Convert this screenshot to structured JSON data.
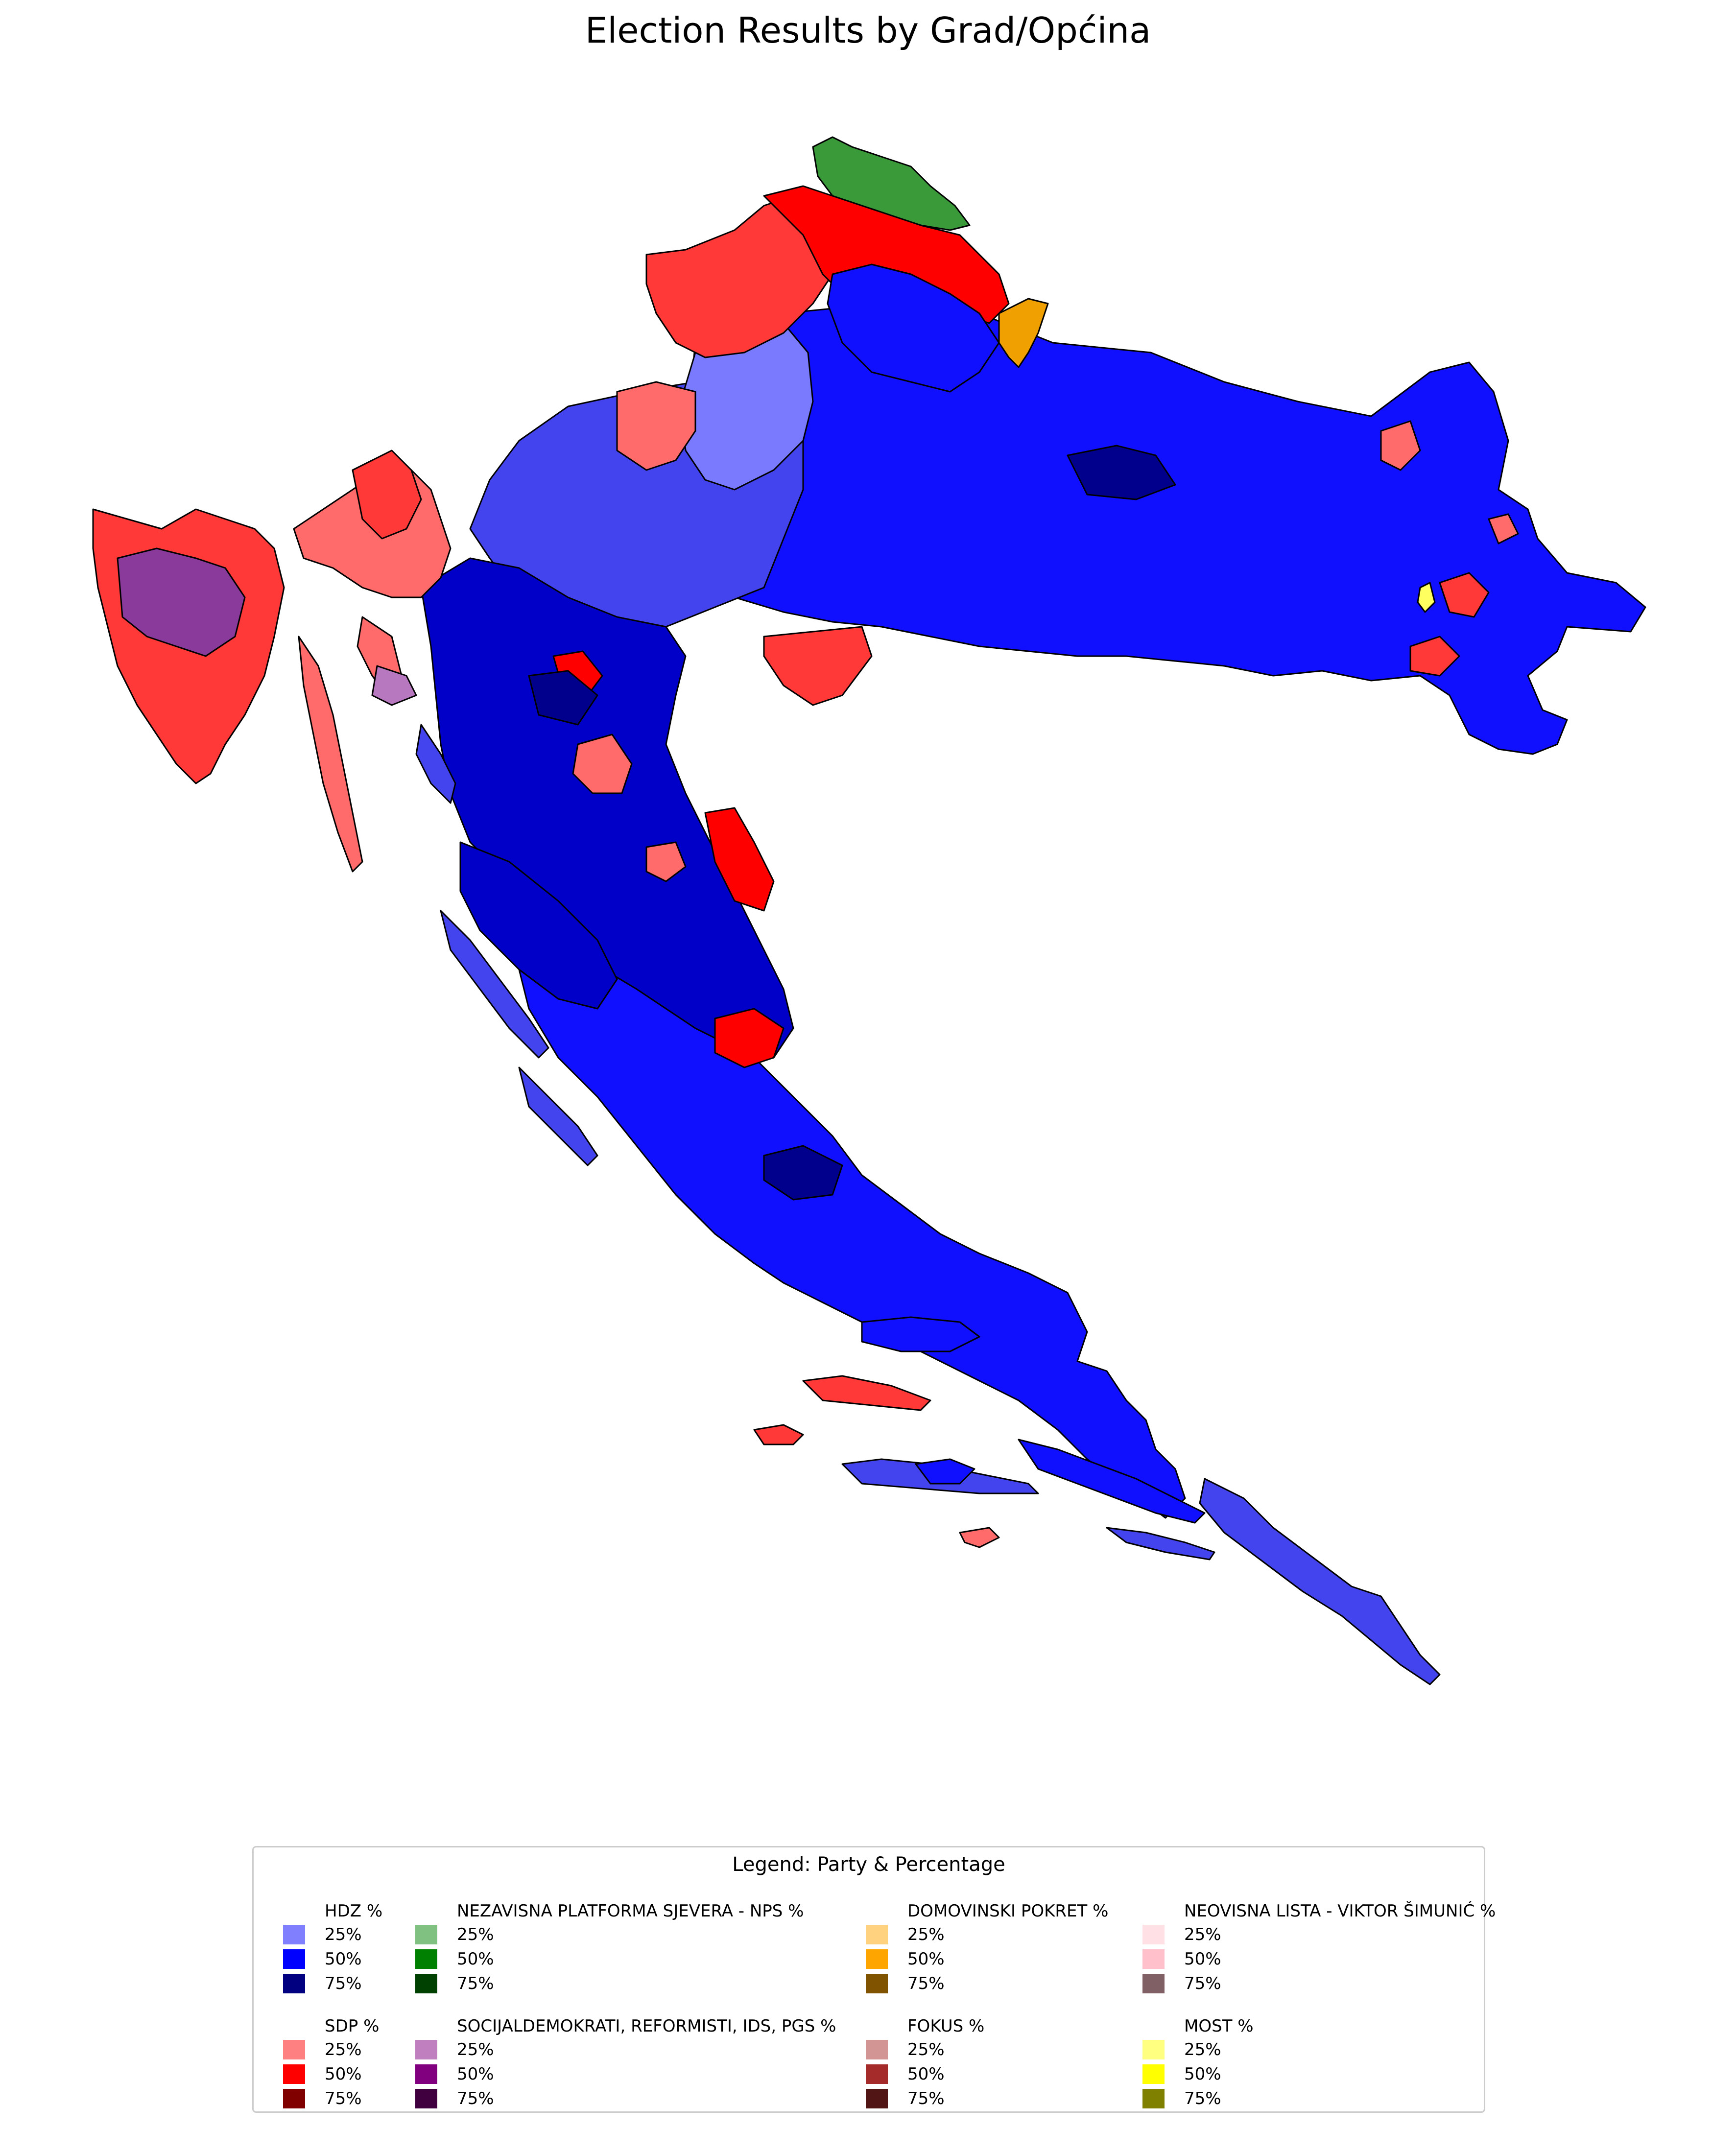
{
  "title": "Election Results by Grad/Općina",
  "legend": {
    "title": "Legend: Party & Percentage",
    "groups": [
      {
        "name": "HDZ %",
        "colors": [
          "#8080ff",
          "#0000ff",
          "#000080"
        ],
        "labels": [
          "25%",
          "50%",
          "75%"
        ]
      },
      {
        "name": "NEZAVISNA PLATFORMA SJEVERA - NPS %",
        "colors": [
          "#80c080",
          "#008000",
          "#004000"
        ],
        "labels": [
          "25%",
          "50%",
          "75%"
        ]
      },
      {
        "name": "DOMOVINSKI POKRET %",
        "colors": [
          "#ffd280",
          "#ffa500",
          "#805300"
        ],
        "labels": [
          "25%",
          "50%",
          "75%"
        ]
      },
      {
        "name": "NEOVISNA LISTA -  VIKTOR ŠIMUNIĆ %",
        "colors": [
          "#ffe0e5",
          "#ffc0cb",
          "#806065"
        ],
        "labels": [
          "25%",
          "50%",
          "75%"
        ]
      },
      {
        "name": "SDP %",
        "colors": [
          "#ff8080",
          "#ff0000",
          "#800000"
        ],
        "labels": [
          "25%",
          "50%",
          "75%"
        ]
      },
      {
        "name": "SOCIJALDEMOKRATI, REFORMISTI, IDS, PGS %",
        "colors": [
          "#c080c0",
          "#800080",
          "#400040"
        ],
        "labels": [
          "25%",
          "50%",
          "75%"
        ]
      },
      {
        "name": "FOKUS %",
        "colors": [
          "#d39494",
          "#a52a2a",
          "#521515"
        ],
        "labels": [
          "25%",
          "50%",
          "75%"
        ]
      },
      {
        "name": "MOST %",
        "colors": [
          "#ffff80",
          "#ffff00",
          "#808000"
        ],
        "labels": [
          "25%",
          "50%",
          "75%"
        ]
      }
    ]
  },
  "map_colors": {
    "hdz_light": "#4444ee",
    "hdz_mid": "#1010ff",
    "hdz_deep": "#0000c8",
    "hdz_dark": "#00008c",
    "sdp_light": "#ff6b6b",
    "sdp_mid": "#ff3838",
    "sdp_strong": "#ff0000",
    "sdp_red_dark": "#d00000",
    "purple_light": "#b878c0",
    "purple_mid": "#8a3a9a",
    "nps_green": "#3a9a3a",
    "dp_orange": "#f0a000",
    "most_yellow": "#ffff60",
    "fokus": "#cc7070",
    "border": "#000000"
  }
}
